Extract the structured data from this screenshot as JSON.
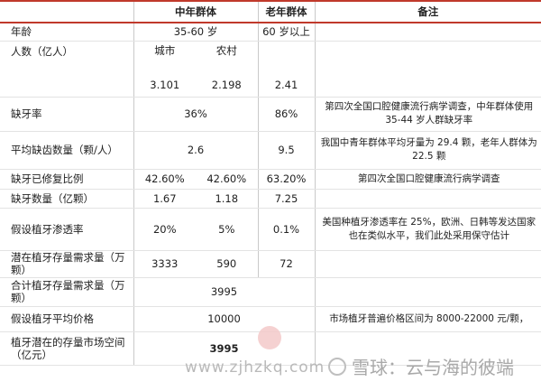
{
  "headers": {
    "col0": "",
    "mid": "中年群体",
    "old": "老年群体",
    "note": "备注"
  },
  "rows": {
    "age": {
      "label": "年龄",
      "mid": "35-60 岁",
      "old": "60 岁以上",
      "note": ""
    },
    "pop_head": {
      "label": "人数（亿人）",
      "city": "城市",
      "rural": "农村",
      "old": "",
      "note": ""
    },
    "pop_val": {
      "city": "3.101",
      "rural": "2.198",
      "old": "2.41"
    },
    "missing_rate": {
      "label": "缺牙率",
      "mid": "36%",
      "old": "86%",
      "note": "第四次全国口腔健康流行病学调查，中年群体使用 35-44 岁人群缺牙率"
    },
    "avg_missing": {
      "label": "平均缺齿数量（颗/人）",
      "mid": "2.6",
      "old": "9.5",
      "note": "我国中青年群体平均牙量为 29.4 颗，老年人群体为 22.5 颗"
    },
    "repaired": {
      "label": "缺牙已修复比例",
      "city": "42.60%",
      "rural": "42.60%",
      "old": "63.20%",
      "note": "第四次全国口腔健康流行病学调查"
    },
    "missing_count": {
      "label": "缺牙数量（亿颗）",
      "city": "1.67",
      "rural": "1.18",
      "old": "7.25",
      "note": ""
    },
    "penetration": {
      "label": "假设植牙渗透率",
      "city": "20%",
      "rural": "5%",
      "old": "0.1%",
      "note": "美国种植牙渗透率在 25%，欧洲、日韩等发达国家也在类似水平，我们此处采用保守估计"
    },
    "potential": {
      "label": "潜在植牙存量需求量（万颗）",
      "city": "3333",
      "rural": "590",
      "old": "72",
      "note": ""
    },
    "total": {
      "label": "合计植牙存量需求量（万颗）",
      "mid": "3995",
      "note": ""
    },
    "price": {
      "label": "假设植牙平均价格",
      "mid": "10000",
      "note": "市场植牙普遍价格区间为 8000-22000 元/颗，"
    },
    "market": {
      "label": "植牙潜在的存量市场空间（亿元）",
      "mid": "3995",
      "note": ""
    }
  },
  "watermark": {
    "url": "www.zjhzkq.com",
    "xueqiu": "雪球：云与海的彼端"
  }
}
